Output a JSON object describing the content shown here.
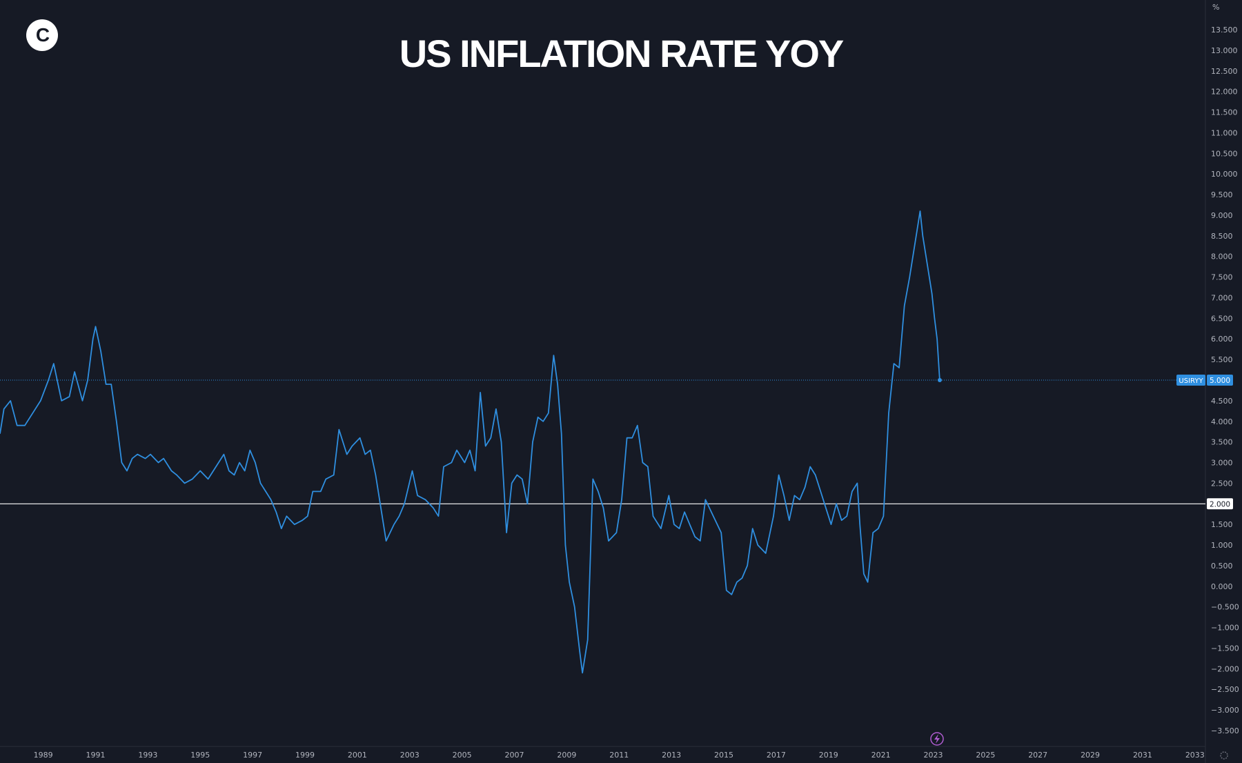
{
  "logo": {
    "letter": "C"
  },
  "colors": {
    "background": "#161a25",
    "series": "#2f8fe0",
    "axis_text": "#b2b5be",
    "separator": "#2a2e39",
    "ref_line": "#ffffff",
    "dotted_line": "#2f8fe0",
    "badge_bg": "#2f8fe0",
    "event_icon": "#b05cd1"
  },
  "chart_data": {
    "type": "line",
    "title": "US INFLATION RATE YOY",
    "xlabel": "",
    "ylabel": "%",
    "series_name": "USIRYY",
    "xlim": [
      1987.35,
      2033.4
    ],
    "ylim": [
      -3.5,
      13.5
    ],
    "x_ticks": [
      "1989",
      "1991",
      "1993",
      "1995",
      "1997",
      "1999",
      "2001",
      "2003",
      "2005",
      "2007",
      "2009",
      "2011",
      "2013",
      "2015",
      "2017",
      "2019",
      "2021",
      "2023",
      "2025",
      "2027",
      "2029",
      "2031",
      "2033"
    ],
    "y_ticks": [
      "13.500",
      "13.000",
      "12.500",
      "12.000",
      "11.500",
      "11.000",
      "10.500",
      "10.000",
      "9.500",
      "9.000",
      "8.500",
      "8.000",
      "7.500",
      "7.000",
      "6.500",
      "6.000",
      "5.500",
      "5.000",
      "4.500",
      "4.000",
      "3.500",
      "3.000",
      "2.500",
      "2.000",
      "1.500",
      "1.000",
      "0.500",
      "0.000",
      "−0.500",
      "−1.000",
      "−1.500",
      "−2.000",
      "−2.500",
      "−3.000",
      "−3.500"
    ],
    "ref_line": {
      "value": 2.0,
      "label": "2.000"
    },
    "last_value": {
      "value": 5.0,
      "label": "5.000"
    },
    "event_icon": "lightning-icon",
    "points": [
      [
        1987.35,
        3.7
      ],
      [
        1987.5,
        4.3
      ],
      [
        1987.75,
        4.5
      ],
      [
        1988.0,
        3.9
      ],
      [
        1988.3,
        3.9
      ],
      [
        1988.6,
        4.2
      ],
      [
        1988.9,
        4.5
      ],
      [
        1989.2,
        5.0
      ],
      [
        1989.4,
        5.4
      ],
      [
        1989.7,
        4.5
      ],
      [
        1990.0,
        4.6
      ],
      [
        1990.2,
        5.2
      ],
      [
        1990.5,
        4.5
      ],
      [
        1990.7,
        5.0
      ],
      [
        1990.9,
        6.0
      ],
      [
        1991.0,
        6.3
      ],
      [
        1991.2,
        5.7
      ],
      [
        1991.4,
        4.9
      ],
      [
        1991.6,
        4.9
      ],
      [
        1991.8,
        4.0
      ],
      [
        1992.0,
        3.0
      ],
      [
        1992.2,
        2.8
      ],
      [
        1992.4,
        3.1
      ],
      [
        1992.6,
        3.2
      ],
      [
        1992.9,
        3.1
      ],
      [
        1993.1,
        3.2
      ],
      [
        1993.4,
        3.0
      ],
      [
        1993.6,
        3.1
      ],
      [
        1993.9,
        2.8
      ],
      [
        1994.1,
        2.7
      ],
      [
        1994.4,
        2.5
      ],
      [
        1994.7,
        2.6
      ],
      [
        1995.0,
        2.8
      ],
      [
        1995.3,
        2.6
      ],
      [
        1995.6,
        2.9
      ],
      [
        1995.9,
        3.2
      ],
      [
        1996.1,
        2.8
      ],
      [
        1996.3,
        2.7
      ],
      [
        1996.5,
        3.0
      ],
      [
        1996.7,
        2.8
      ],
      [
        1996.9,
        3.3
      ],
      [
        1997.1,
        3.0
      ],
      [
        1997.3,
        2.5
      ],
      [
        1997.5,
        2.3
      ],
      [
        1997.7,
        2.1
      ],
      [
        1997.9,
        1.8
      ],
      [
        1998.1,
        1.4
      ],
      [
        1998.3,
        1.7
      ],
      [
        1998.6,
        1.5
      ],
      [
        1998.9,
        1.6
      ],
      [
        1999.1,
        1.7
      ],
      [
        1999.3,
        2.3
      ],
      [
        1999.6,
        2.3
      ],
      [
        1999.8,
        2.6
      ],
      [
        2000.1,
        2.7
      ],
      [
        2000.3,
        3.8
      ],
      [
        2000.6,
        3.2
      ],
      [
        2000.8,
        3.4
      ],
      [
        2001.1,
        3.6
      ],
      [
        2001.3,
        3.2
      ],
      [
        2001.5,
        3.3
      ],
      [
        2001.7,
        2.7
      ],
      [
        2001.9,
        1.9
      ],
      [
        2002.1,
        1.1
      ],
      [
        2002.4,
        1.5
      ],
      [
        2002.6,
        1.7
      ],
      [
        2002.8,
        2.0
      ],
      [
        2003.1,
        2.8
      ],
      [
        2003.3,
        2.2
      ],
      [
        2003.6,
        2.1
      ],
      [
        2003.9,
        1.9
      ],
      [
        2004.1,
        1.7
      ],
      [
        2004.3,
        2.9
      ],
      [
        2004.6,
        3.0
      ],
      [
        2004.8,
        3.3
      ],
      [
        2005.1,
        3.0
      ],
      [
        2005.3,
        3.3
      ],
      [
        2005.5,
        2.8
      ],
      [
        2005.7,
        4.7
      ],
      [
        2005.9,
        3.4
      ],
      [
        2006.1,
        3.6
      ],
      [
        2006.3,
        4.3
      ],
      [
        2006.5,
        3.5
      ],
      [
        2006.7,
        1.3
      ],
      [
        2006.9,
        2.5
      ],
      [
        2007.1,
        2.7
      ],
      [
        2007.3,
        2.6
      ],
      [
        2007.5,
        2.0
      ],
      [
        2007.7,
        3.5
      ],
      [
        2007.9,
        4.1
      ],
      [
        2008.1,
        4.0
      ],
      [
        2008.3,
        4.2
      ],
      [
        2008.5,
        5.6
      ],
      [
        2008.65,
        4.9
      ],
      [
        2008.8,
        3.7
      ],
      [
        2008.95,
        1.0
      ],
      [
        2009.1,
        0.1
      ],
      [
        2009.3,
        -0.5
      ],
      [
        2009.5,
        -1.6
      ],
      [
        2009.6,
        -2.1
      ],
      [
        2009.8,
        -1.3
      ],
      [
        2010.0,
        2.6
      ],
      [
        2010.2,
        2.3
      ],
      [
        2010.4,
        1.9
      ],
      [
        2010.6,
        1.1
      ],
      [
        2010.9,
        1.3
      ],
      [
        2011.1,
        2.1
      ],
      [
        2011.3,
        3.6
      ],
      [
        2011.5,
        3.6
      ],
      [
        2011.7,
        3.9
      ],
      [
        2011.9,
        3.0
      ],
      [
        2012.1,
        2.9
      ],
      [
        2012.3,
        1.7
      ],
      [
        2012.6,
        1.4
      ],
      [
        2012.9,
        2.2
      ],
      [
        2013.1,
        1.5
      ],
      [
        2013.3,
        1.4
      ],
      [
        2013.5,
        1.8
      ],
      [
        2013.7,
        1.5
      ],
      [
        2013.9,
        1.2
      ],
      [
        2014.1,
        1.1
      ],
      [
        2014.3,
        2.1
      ],
      [
        2014.6,
        1.7
      ],
      [
        2014.9,
        1.3
      ],
      [
        2015.1,
        -0.1
      ],
      [
        2015.3,
        -0.2
      ],
      [
        2015.5,
        0.1
      ],
      [
        2015.7,
        0.2
      ],
      [
        2015.9,
        0.5
      ],
      [
        2016.1,
        1.4
      ],
      [
        2016.3,
        1.0
      ],
      [
        2016.6,
        0.8
      ],
      [
        2016.9,
        1.7
      ],
      [
        2017.1,
        2.7
      ],
      [
        2017.3,
        2.2
      ],
      [
        2017.5,
        1.6
      ],
      [
        2017.7,
        2.2
      ],
      [
        2017.9,
        2.1
      ],
      [
        2018.1,
        2.4
      ],
      [
        2018.3,
        2.9
      ],
      [
        2018.5,
        2.7
      ],
      [
        2018.7,
        2.3
      ],
      [
        2018.9,
        1.9
      ],
      [
        2019.1,
        1.5
      ],
      [
        2019.3,
        2.0
      ],
      [
        2019.5,
        1.6
      ],
      [
        2019.7,
        1.7
      ],
      [
        2019.9,
        2.3
      ],
      [
        2020.1,
        2.5
      ],
      [
        2020.2,
        1.5
      ],
      [
        2020.35,
        0.3
      ],
      [
        2020.5,
        0.1
      ],
      [
        2020.7,
        1.3
      ],
      [
        2020.9,
        1.4
      ],
      [
        2021.1,
        1.7
      ],
      [
        2021.3,
        4.2
      ],
      [
        2021.5,
        5.4
      ],
      [
        2021.7,
        5.3
      ],
      [
        2021.9,
        6.8
      ],
      [
        2022.1,
        7.5
      ],
      [
        2022.3,
        8.3
      ],
      [
        2022.5,
        9.1
      ],
      [
        2022.6,
        8.5
      ],
      [
        2022.8,
        7.7
      ],
      [
        2022.95,
        7.1
      ],
      [
        2023.05,
        6.5
      ],
      [
        2023.15,
        6.0
      ],
      [
        2023.25,
        5.0
      ]
    ]
  }
}
